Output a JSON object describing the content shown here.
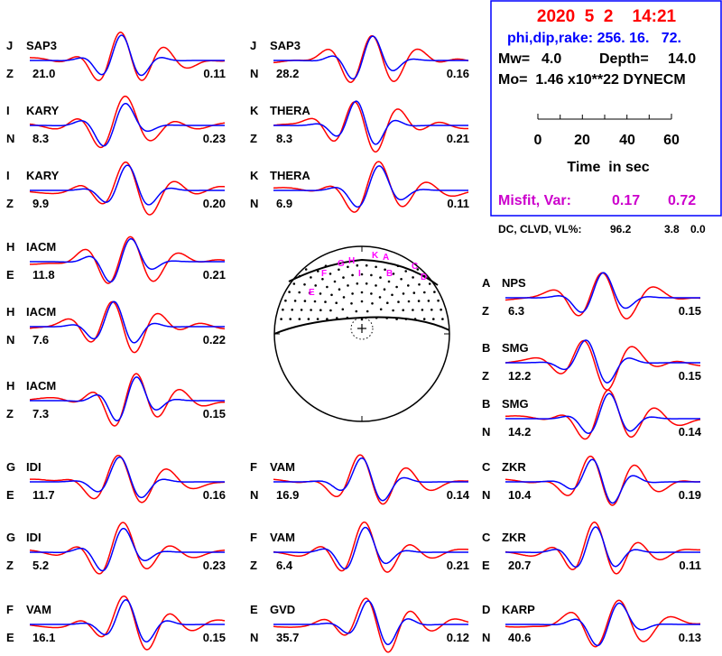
{
  "info": {
    "date": "2020  5  2    14:21",
    "mech": "phi,dip,rake: 256. 16.   72.",
    "mw_label": "Mw=",
    "mw": "4.0",
    "depth_label": "Depth=",
    "depth": "14.0",
    "mo": "Mo=  1.46 x10**22 DYNECM",
    "time_ticks": [
      "0",
      "20",
      "40",
      "60"
    ],
    "time_label": "Time  in sec",
    "misfit_label": "Misfit, Var:",
    "misfit": "0.17",
    "var": "0.72",
    "dc_label": "DC, CLVD, VL%:",
    "dc": "96.2",
    "clvd": "3.8",
    "vl": "0.0"
  },
  "colors": {
    "observed": "#ff0000",
    "synthetic": "#0000ff",
    "title": "#ff0000",
    "mech": "#0000ff",
    "misfit": "#cc00cc",
    "station_letters": "#ff00ff",
    "frame": "#0000ff"
  },
  "panels": [
    {
      "code": "J",
      "station": "SAP3",
      "comp": "Z",
      "amp": "21.0",
      "var": "0.11"
    },
    {
      "code": "I",
      "station": "KARY",
      "comp": "N",
      "amp": "8.3",
      "var": "0.23"
    },
    {
      "code": "I",
      "station": "KARY",
      "comp": "Z",
      "amp": "9.9",
      "var": "0.20"
    },
    {
      "code": "H",
      "station": "IACM",
      "comp": "E",
      "amp": "11.8",
      "var": "0.21"
    },
    {
      "code": "H",
      "station": "IACM",
      "comp": "N",
      "amp": "7.6",
      "var": "0.22"
    },
    {
      "code": "H",
      "station": "IACM",
      "comp": "Z",
      "amp": "7.3",
      "var": "0.15"
    },
    {
      "code": "G",
      "station": "IDI",
      "comp": "E",
      "amp": "11.7",
      "var": "0.16"
    },
    {
      "code": "G",
      "station": "IDI",
      "comp": "Z",
      "amp": "5.2",
      "var": "0.23"
    },
    {
      "code": "F",
      "station": "VAM",
      "comp": "E",
      "amp": "16.1",
      "var": "0.15"
    },
    {
      "code": "J",
      "station": "SAP3",
      "comp": "N",
      "amp": "28.2",
      "var": "0.16"
    },
    {
      "code": "K",
      "station": "THERA",
      "comp": "Z",
      "amp": "8.3",
      "var": "0.21"
    },
    {
      "code": "K",
      "station": "THERA",
      "comp": "N",
      "amp": "6.9",
      "var": "0.11"
    },
    {
      "code": "F",
      "station": "VAM",
      "comp": "N",
      "amp": "16.9",
      "var": "0.14"
    },
    {
      "code": "F",
      "station": "VAM",
      "comp": "Z",
      "amp": "6.4",
      "var": "0.21"
    },
    {
      "code": "E",
      "station": "GVD",
      "comp": "N",
      "amp": "35.7",
      "var": "0.12"
    },
    {
      "code": "A",
      "station": "NPS",
      "comp": "Z",
      "amp": "6.3",
      "var": "0.15"
    },
    {
      "code": "B",
      "station": "SMG",
      "comp": "Z",
      "amp": "12.2",
      "var": "0.15"
    },
    {
      "code": "B",
      "station": "SMG",
      "comp": "N",
      "amp": "14.2",
      "var": "0.14"
    },
    {
      "code": "C",
      "station": "ZKR",
      "comp": "N",
      "amp": "10.4",
      "var": "0.19"
    },
    {
      "code": "C",
      "station": "ZKR",
      "comp": "E",
      "amp": "20.7",
      "var": "0.11"
    },
    {
      "code": "D",
      "station": "KARP",
      "comp": "N",
      "amp": "40.6",
      "var": "0.13"
    }
  ],
  "beachball_stations": [
    "K",
    "A",
    "H",
    "G",
    "F",
    "I",
    "B",
    "C",
    "D",
    "E"
  ]
}
